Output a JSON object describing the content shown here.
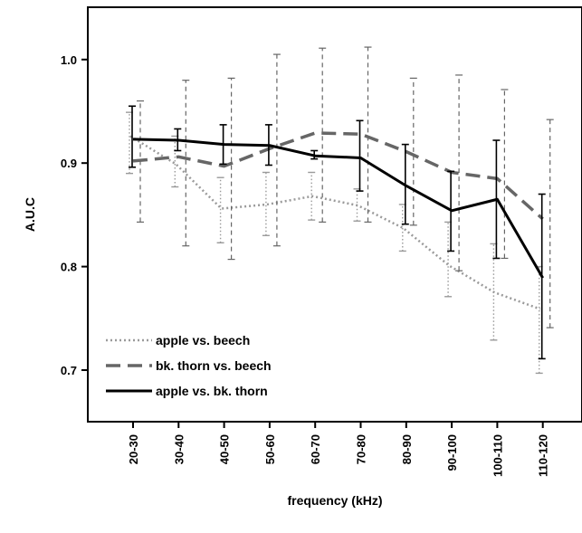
{
  "chart_data": {
    "type": "line",
    "title": "",
    "xlabel": "frequency (kHz)",
    "ylabel": "A.U.C",
    "categories": [
      "20-30",
      "30-40",
      "40-50",
      "50-60",
      "60-70",
      "70-80",
      "80-90",
      "90-100",
      "100-110",
      "110-120"
    ],
    "ylim": [
      0.64,
      1.07
    ],
    "yticks": [
      0.7,
      0.8,
      0.9,
      1.0
    ],
    "ytick_labels": [
      "0.7",
      "0.8",
      "0.9",
      "1.0"
    ],
    "grid": false,
    "legend_position": "bottom-left",
    "series": [
      {
        "name": "apple vs. beech",
        "style": "dotted",
        "color": "#9a9a9a",
        "values": [
          0.926,
          0.899,
          0.856,
          0.86,
          0.868,
          0.859,
          0.837,
          0.801,
          0.775,
          0.759
        ],
        "err_low": [
          0.89,
          0.877,
          0.823,
          0.83,
          0.845,
          0.844,
          0.815,
          0.771,
          0.729,
          0.697
        ],
        "err_high": [
          0.949,
          0.926,
          0.886,
          0.891,
          0.891,
          0.875,
          0.86,
          0.843,
          0.822,
          0.8
        ]
      },
      {
        "name": "bk. thorn vs. beech",
        "style": "dashed",
        "color": "#666666",
        "values": [
          0.902,
          0.906,
          0.897,
          0.914,
          0.929,
          0.928,
          0.911,
          0.891,
          0.885,
          0.846
        ],
        "err_low": [
          0.843,
          0.82,
          0.807,
          0.82,
          0.843,
          0.843,
          0.84,
          0.796,
          0.808,
          0.741
        ],
        "err_high": [
          0.96,
          0.98,
          0.982,
          1.005,
          1.011,
          1.012,
          0.982,
          0.985,
          0.971,
          0.942
        ]
      },
      {
        "name": "apple vs. bk. thorn",
        "style": "solid",
        "color": "#000000",
        "values": [
          0.923,
          0.922,
          0.918,
          0.917,
          0.907,
          0.905,
          0.878,
          0.854,
          0.865,
          0.789
        ],
        "err_low": [
          0.896,
          0.912,
          0.899,
          0.898,
          0.904,
          0.873,
          0.841,
          0.815,
          0.808,
          0.711
        ],
        "err_high": [
          0.955,
          0.933,
          0.937,
          0.937,
          0.912,
          0.941,
          0.918,
          0.892,
          0.922,
          0.87
        ]
      }
    ]
  }
}
